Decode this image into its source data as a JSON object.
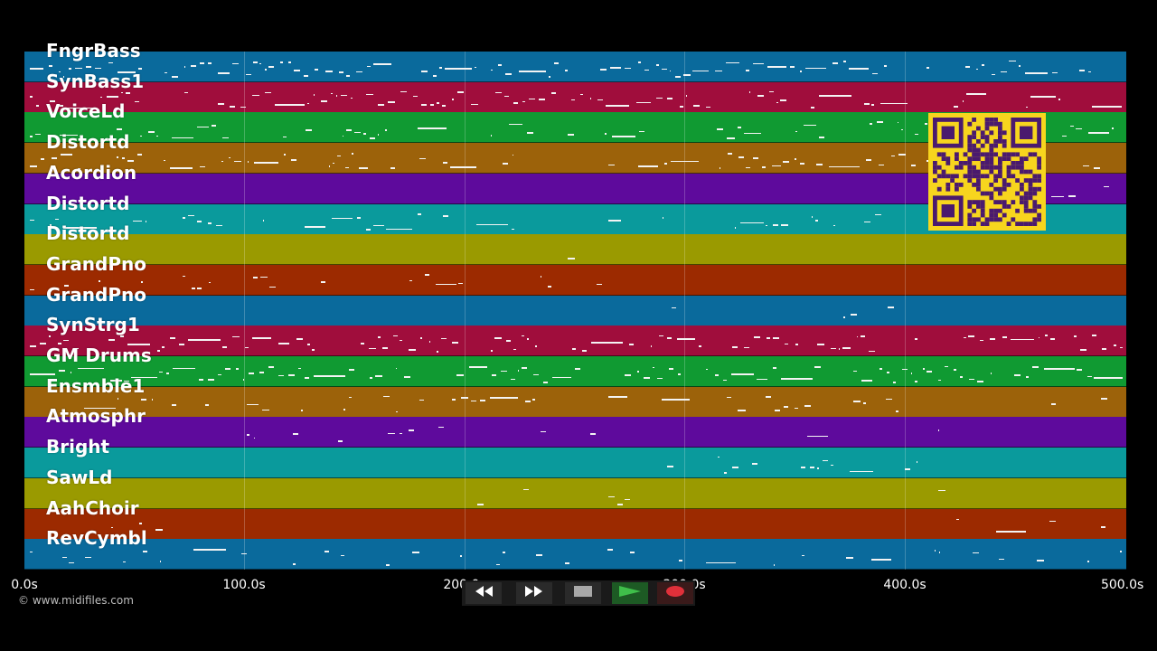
{
  "tracks": [
    {
      "name": "FngrBass",
      "color": "#0a6a9c"
    },
    {
      "name": "SynBass1",
      "color": "#a00d3c"
    },
    {
      "name": "VoiceLd",
      "color": "#109a32"
    },
    {
      "name": "Distortd",
      "color": "#9c620a"
    },
    {
      "name": "Acordion",
      "color": "#5e0a9c"
    },
    {
      "name": "Distortd",
      "color": "#0a9a9c"
    },
    {
      "name": "Distortd",
      "color": "#9a9a00"
    },
    {
      "name": "GrandPno",
      "color": "#9c2a00"
    },
    {
      "name": "GrandPno",
      "color": "#0a6a9c"
    },
    {
      "name": "SynStrg1",
      "color": "#a00d3c"
    },
    {
      "name": "GM Drums",
      "color": "#109a32"
    },
    {
      "name": "Ensmble1",
      "color": "#9c620a"
    },
    {
      "name": "Atmosphr",
      "color": "#5e0a9c"
    },
    {
      "name": "Bright",
      "color": "#0a9a9c"
    },
    {
      "name": "SawLd",
      "color": "#9a9a00"
    },
    {
      "name": "AahChoir",
      "color": "#9c2a00"
    },
    {
      "name": "RevCymbl",
      "color": "#0a6a9c"
    }
  ],
  "timeline": {
    "ticks": [
      "0.0s",
      "100.0s",
      "200.0s",
      "300.0s",
      "400.0s",
      "500.0s"
    ]
  },
  "copyright": "© www.midifiles.com",
  "transport": {
    "rewind_icon": "rewind-icon",
    "forward_icon": "fast-forward-icon",
    "stop_icon": "stop-icon",
    "play_icon": "play-icon",
    "record_icon": "record-icon",
    "play_color": "#3fbf4a",
    "record_color": "#e0303a"
  },
  "overlay": {
    "qr_color": "#f7d51e",
    "qr_ink": "#4a1a6e"
  }
}
